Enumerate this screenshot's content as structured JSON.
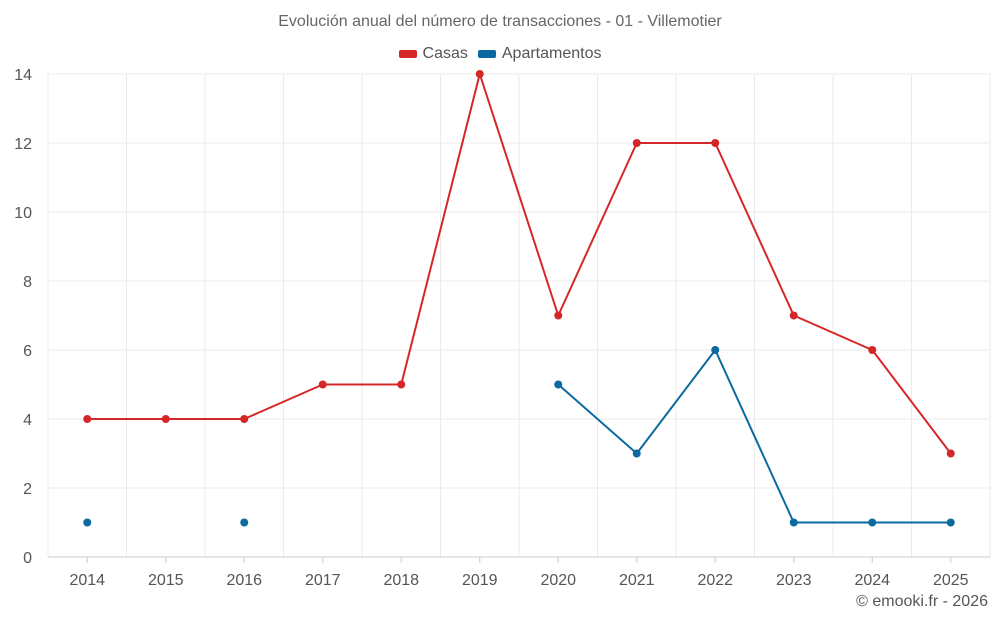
{
  "chart_data": {
    "type": "line",
    "title": "Evolución anual del número de transacciones - 01 - Villemotier",
    "xlabel": "",
    "ylabel": "",
    "categories": [
      "2014",
      "2015",
      "2016",
      "2017",
      "2018",
      "2019",
      "2020",
      "2021",
      "2022",
      "2023",
      "2024",
      "2025"
    ],
    "ylim": [
      0,
      14
    ],
    "yticks": [
      0,
      2,
      4,
      6,
      8,
      10,
      12,
      14
    ],
    "grid": true,
    "legend_position": "top-center",
    "series": [
      {
        "name": "Casas",
        "color": "#d62728",
        "values": [
          4,
          4,
          4,
          5,
          5,
          14,
          7,
          12,
          12,
          7,
          6,
          3
        ]
      },
      {
        "name": "Apartamentos",
        "color": "#0b6aa2",
        "values": [
          1,
          null,
          1,
          null,
          null,
          null,
          5,
          3,
          6,
          1,
          1,
          1
        ]
      }
    ]
  },
  "credit": "© emooki.fr - 2026"
}
